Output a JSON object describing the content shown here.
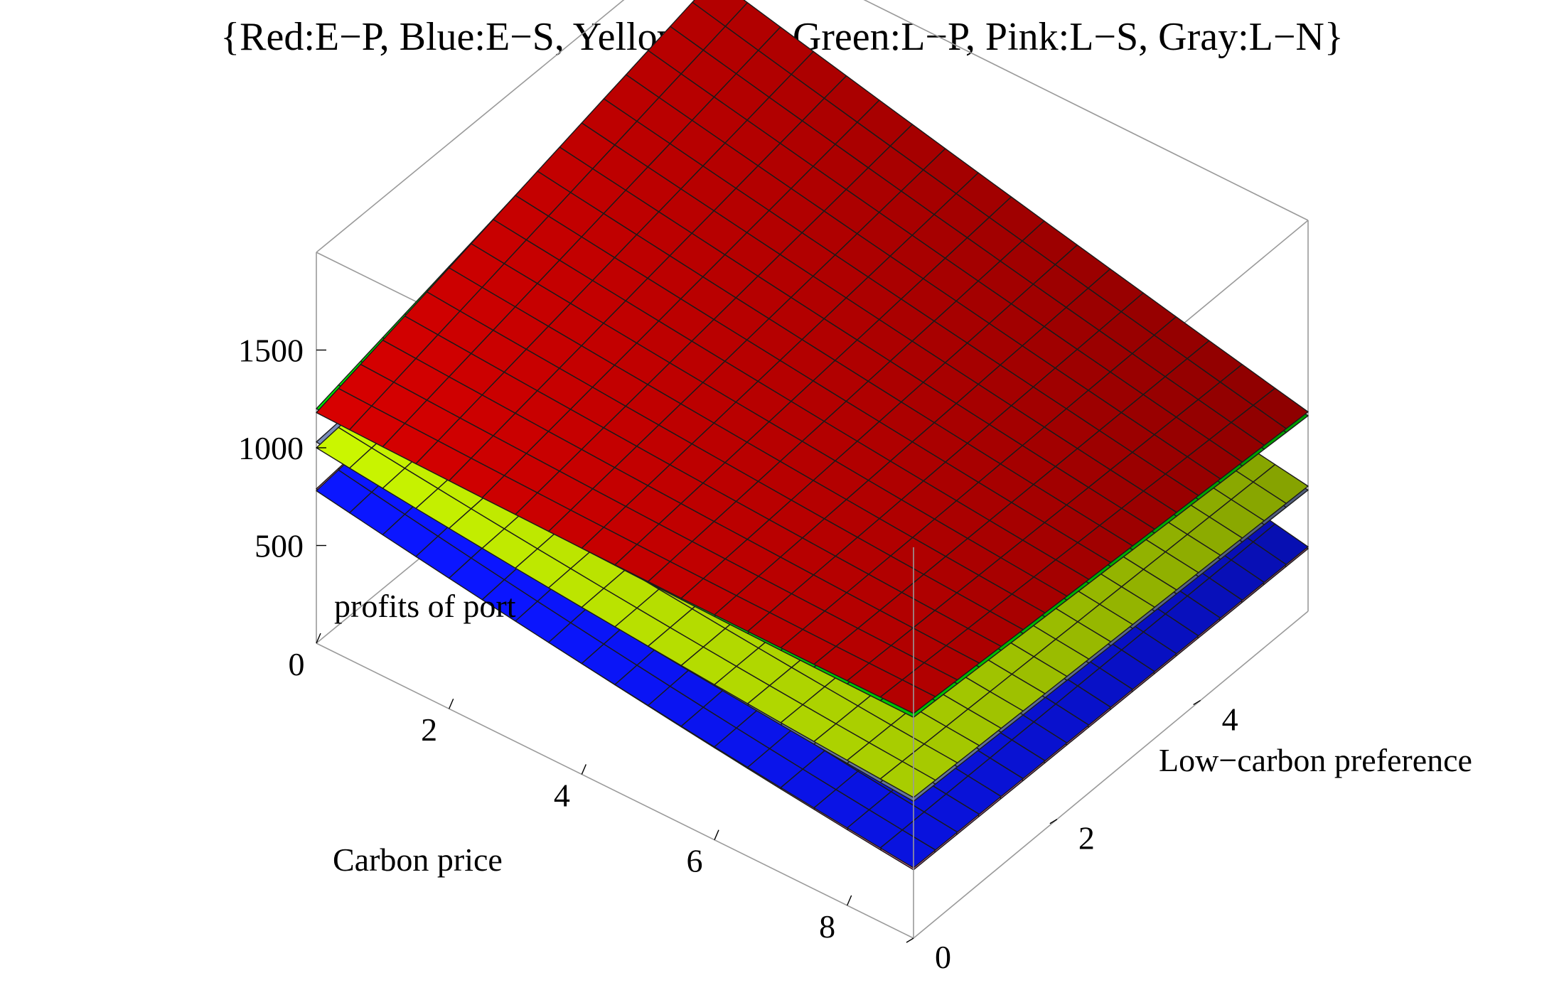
{
  "chart_data": {
    "type": "surface3d",
    "title": "{Red:E−P, Blue:E−S, Yellow:E−N, Green:L−P, Pink:L−S, Gray:L−N}",
    "xlabel": "Carbon price",
    "ylabel": "Low−carbon preference",
    "zlabel": "profits of port",
    "xlim": [
      0,
      9
    ],
    "ylim": [
      0,
      5.5
    ],
    "zlim": [
      0,
      2000
    ],
    "x_ticks": [
      "0",
      "2",
      "4",
      "6",
      "8"
    ],
    "y_ticks": [
      "0",
      "2",
      "4"
    ],
    "z_ticks": [
      "500",
      "1000",
      "1500"
    ],
    "grid_n": 18,
    "series": [
      {
        "name": "Red:E−P",
        "color": "#c00000",
        "corners": [
          1180,
          1150,
          1020,
          1730
        ]
      },
      {
        "name": "Green:L−P",
        "color": "#00d200",
        "corners": [
          1200,
          1130,
          1000,
          1710
        ]
      },
      {
        "name": "Yellow:E−N",
        "color": "#b4dc00",
        "corners": [
          1000,
          720,
          640,
          1200
        ]
      },
      {
        "name": "Gray:L−N",
        "color": "#6d7ea6",
        "corners": [
          1030,
          700,
          620,
          1180
        ]
      },
      {
        "name": "Blue:E−S",
        "color": "#0a14f0",
        "corners": [
          780,
          360,
          330,
          1020
        ]
      },
      {
        "name": "Pink:L−S",
        "color": "#e070a8",
        "corners": [
          790,
          350,
          320,
          1000
        ]
      }
    ]
  }
}
